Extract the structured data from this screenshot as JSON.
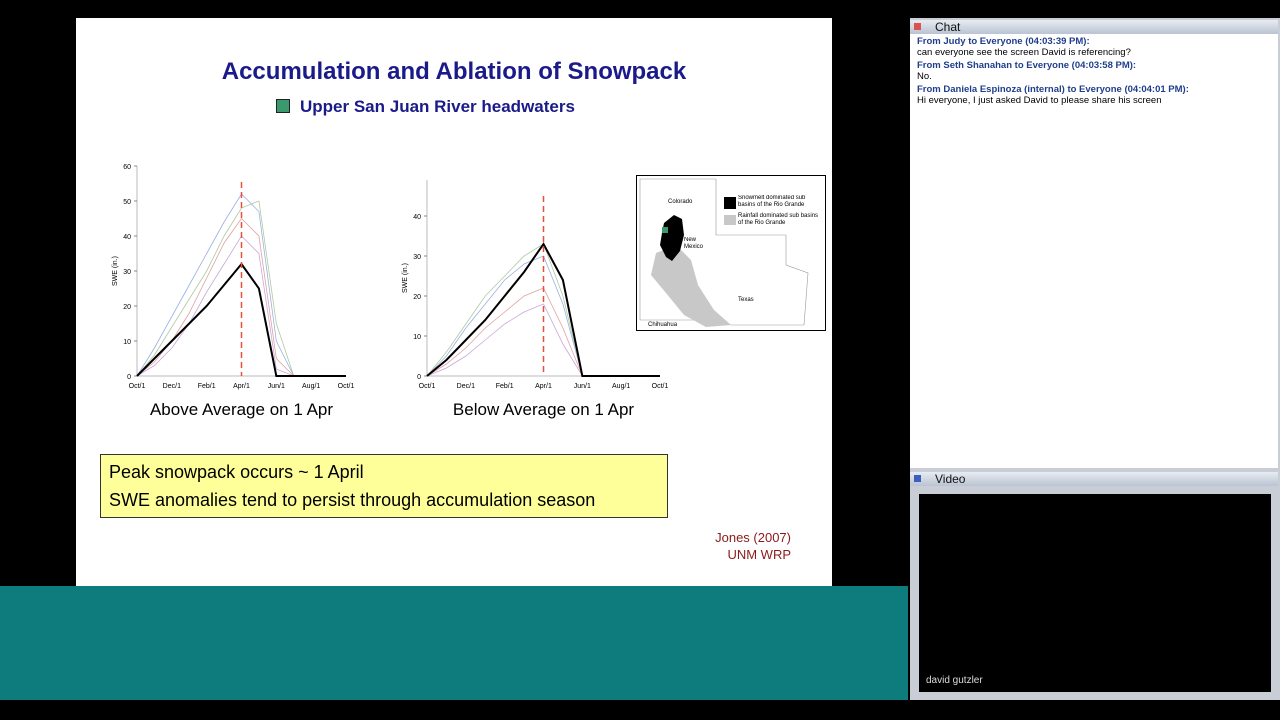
{
  "slide": {
    "title": "Accumulation and Ablation of Snowpack",
    "subtitle": "Upper San Juan River headwaters",
    "callout": [
      "Peak snowpack occurs ~ 1 April",
      "SWE anomalies tend to persist through accumulation season"
    ],
    "citation": [
      "Jones (2007)",
      "UNM WRP"
    ],
    "map": {
      "labels": [
        "Colorado",
        "New Mexico",
        "Texas",
        "Chihuahua"
      ],
      "legend": [
        "Snowmelt dominated sub basins of the Rio Grande",
        "Rainfall dominated sub basins of the Rio Grande"
      ]
    }
  },
  "chart_data": [
    {
      "type": "line",
      "caption": "Above Average on 1 Apr",
      "y_label": "SWE (in.)",
      "categories": [
        "Oct/1",
        null,
        "Dec/1",
        null,
        "Feb/1",
        null,
        "Apr/1",
        null,
        "Jun/1",
        null,
        "Aug/1",
        null,
        "Oct/1"
      ],
      "ylim": [
        0,
        60
      ],
      "yticks": [
        0,
        10,
        20,
        30,
        40,
        50,
        60
      ],
      "reference_line": {
        "x": "Apr/1",
        "color": "#e8503a"
      },
      "series": [
        {
          "color": "#9ab0e0",
          "values": [
            0,
            8,
            17,
            26,
            35,
            44,
            52,
            47,
            10,
            0,
            0,
            0,
            0
          ]
        },
        {
          "color": "#e0a0a0",
          "values": [
            0,
            4,
            10,
            18,
            28,
            38,
            45,
            40,
            5,
            0,
            0,
            0,
            0
          ]
        },
        {
          "color": "#b0c8a0",
          "values": [
            0,
            6,
            14,
            22,
            30,
            40,
            48,
            50,
            15,
            0,
            0,
            0,
            0
          ]
        },
        {
          "color": "#c8a8d8",
          "values": [
            0,
            3,
            8,
            15,
            24,
            32,
            40,
            35,
            2,
            0,
            0,
            0,
            0
          ]
        },
        {
          "color": "#000000",
          "values": [
            0,
            5,
            10,
            15,
            20,
            26,
            32,
            25,
            0,
            0,
            0,
            0,
            0
          ]
        }
      ]
    },
    {
      "type": "line",
      "caption": "Below Average on 1 Apr",
      "y_label": "SWE (in.)",
      "categories": [
        "Oct/1",
        null,
        "Dec/1",
        null,
        "Feb/1",
        null,
        "Apr/1",
        null,
        "Jun/1",
        null,
        "Aug/1",
        null,
        "Oct/1"
      ],
      "ylim": [
        0,
        49
      ],
      "yticks": [
        0,
        10,
        20,
        30,
        40
      ],
      "reference_line": {
        "x": "Apr/1",
        "color": "#e8503a"
      },
      "series": [
        {
          "color": "#9ab0e0",
          "values": [
            0,
            5,
            12,
            18,
            24,
            28,
            30,
            18,
            0,
            0,
            0,
            0,
            0
          ]
        },
        {
          "color": "#e0a0a0",
          "values": [
            0,
            3,
            7,
            12,
            16,
            20,
            22,
            12,
            0,
            0,
            0,
            0,
            0
          ]
        },
        {
          "color": "#b0c8a0",
          "values": [
            0,
            6,
            13,
            20,
            25,
            30,
            33,
            20,
            0,
            0,
            0,
            0,
            0
          ]
        },
        {
          "color": "#c8a8d8",
          "values": [
            0,
            2,
            5,
            9,
            13,
            16,
            18,
            8,
            0,
            0,
            0,
            0,
            0
          ]
        },
        {
          "color": "#000000",
          "values": [
            0,
            4,
            9,
            14,
            20,
            26,
            33,
            24,
            0,
            0,
            0,
            0,
            0
          ]
        }
      ]
    }
  ],
  "chat": {
    "title": "Chat",
    "messages": [
      {
        "sender": "From Judy to Everyone (04:03:39 PM):",
        "text": "can everyone see the screen David is referencing?"
      },
      {
        "sender": "From Seth Shanahan to Everyone (04:03:58 PM):",
        "text": "No."
      },
      {
        "sender": "From Daniela Espinoza (internal) to Everyone (04:04:01 PM):",
        "text": "Hi everyone, I just asked David to please share his screen"
      }
    ]
  },
  "video": {
    "title": "Video",
    "participant": "david gutzler"
  }
}
